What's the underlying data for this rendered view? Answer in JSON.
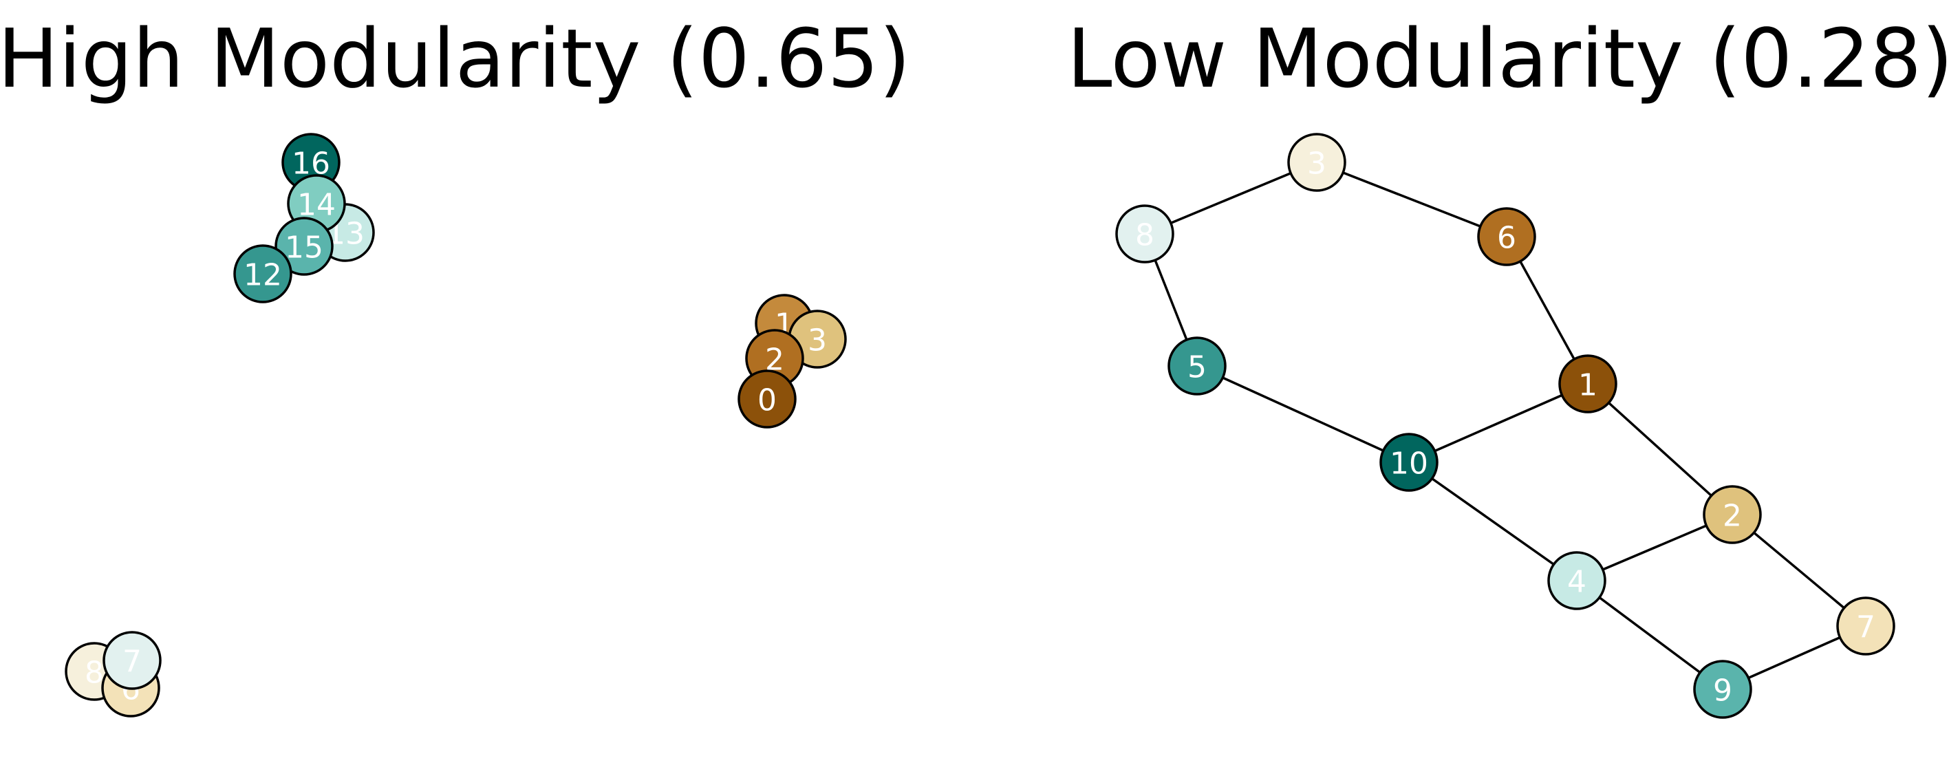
{
  "panels": [
    {
      "title": "High Modularity (0.65)",
      "nodes": [
        {
          "id": "16",
          "color": "#01665e"
        },
        {
          "id": "13",
          "color": "#c7eae5"
        },
        {
          "id": "14",
          "color": "#80cdc1"
        },
        {
          "id": "15",
          "color": "#5ab4ac"
        },
        {
          "id": "12",
          "color": "#35978f"
        },
        {
          "id": "1",
          "color": "#c48a3c"
        },
        {
          "id": "3",
          "color": "#dfc27d"
        },
        {
          "id": "2",
          "color": "#b06f21"
        },
        {
          "id": "0",
          "color": "#8c510a"
        },
        {
          "id": "8",
          "color": "#f6f0dc"
        },
        {
          "id": "6",
          "color": "#f3e2b8"
        },
        {
          "id": "7",
          "color": "#e2f1ef"
        }
      ],
      "edges": []
    },
    {
      "title": "Low Modularity (0.28)",
      "nodes": [
        {
          "id": "3",
          "color": "#f6f0dc"
        },
        {
          "id": "8",
          "color": "#e2f1ef"
        },
        {
          "id": "6",
          "color": "#b06f21"
        },
        {
          "id": "5",
          "color": "#35978f"
        },
        {
          "id": "1",
          "color": "#8c510a"
        },
        {
          "id": "10",
          "color": "#01665e"
        },
        {
          "id": "2",
          "color": "#dfc27d"
        },
        {
          "id": "4",
          "color": "#c7eae5"
        },
        {
          "id": "7",
          "color": "#f3e2b8"
        },
        {
          "id": "9",
          "color": "#5ab4ac"
        }
      ],
      "edges": [
        [
          "8",
          "3"
        ],
        [
          "3",
          "6"
        ],
        [
          "8",
          "5"
        ],
        [
          "6",
          "1"
        ],
        [
          "5",
          "10"
        ],
        [
          "10",
          "1"
        ],
        [
          "1",
          "2"
        ],
        [
          "10",
          "4"
        ],
        [
          "4",
          "2"
        ],
        [
          "2",
          "7"
        ],
        [
          "4",
          "9"
        ],
        [
          "9",
          "7"
        ]
      ]
    }
  ]
}
